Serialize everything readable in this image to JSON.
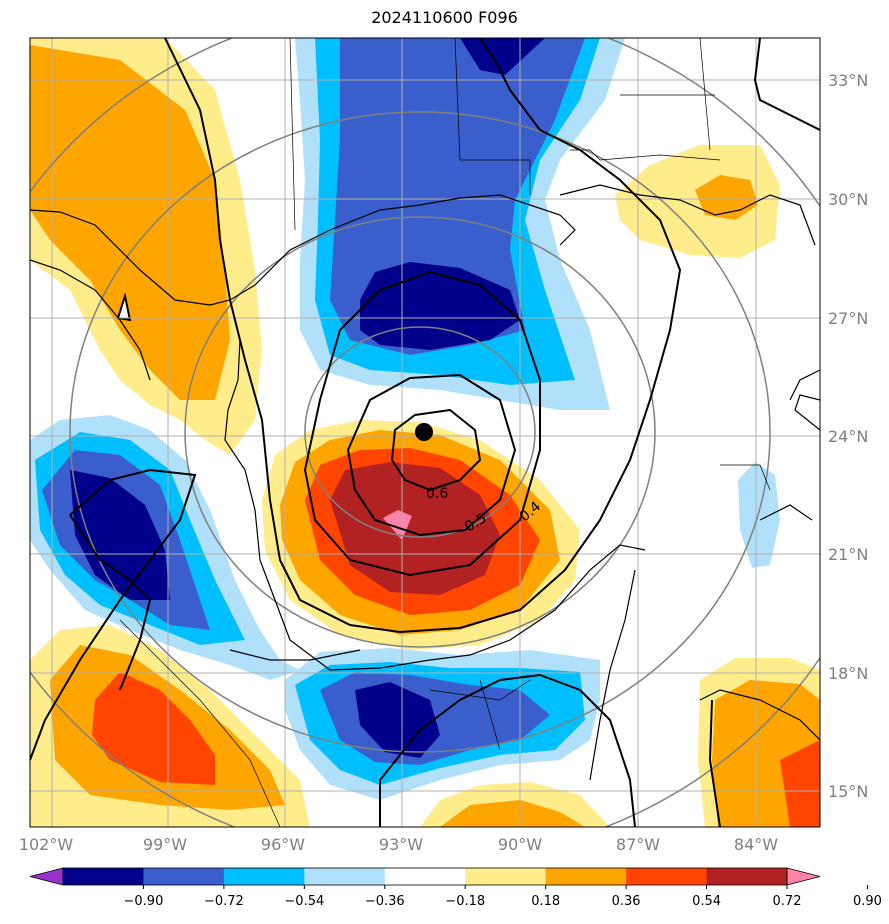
{
  "title": "2024110600 F096",
  "lat_labels": [
    "33°N",
    "30°N",
    "27°N",
    "24°N",
    "21°N",
    "18°N",
    "15°N"
  ],
  "lon_labels": [
    "102°W",
    "99°W",
    "96°W",
    "93°W",
    "90°W",
    "87°W",
    "84°W"
  ],
  "contour_labels": [
    "0.6",
    "0.5",
    "0.4"
  ],
  "colorbar": {
    "tick_labels": [
      "−0.90",
      "−0.72",
      "−0.54",
      "−0.36",
      "−0.18",
      "0.18",
      "0.36",
      "0.54",
      "0.72",
      "0.90"
    ],
    "colors": [
      "#9932cc",
      "#00008b",
      "#3a5fcd",
      "#00bfff",
      "#b0e0fa",
      "#ffffff",
      "#ffec8b",
      "#ffa500",
      "#ff4500",
      "#b22222",
      "#ff82ab"
    ]
  },
  "storm_marker": "storm-center"
}
